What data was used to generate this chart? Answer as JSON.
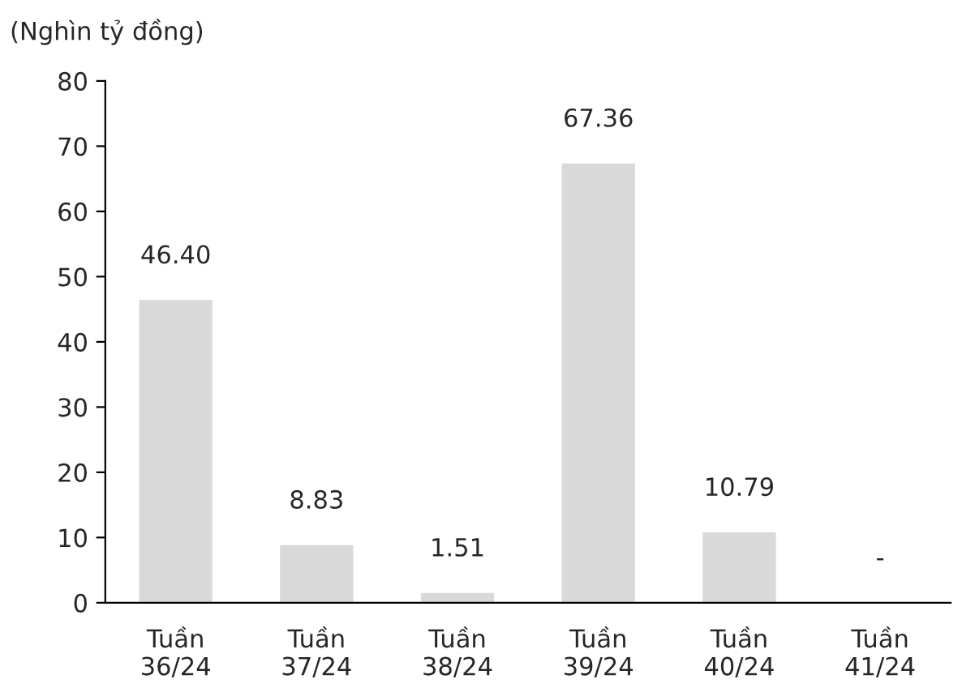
{
  "chart_data": {
    "type": "bar",
    "ylabel": "(Nghìn tỷ đồng)",
    "categories": [
      "Tuần\n36/24",
      "Tuần\n37/24",
      "Tuần\n38/24",
      "Tuần\n39/24",
      "Tuần\n40/24",
      "Tuần\n41/24"
    ],
    "values": [
      46.4,
      8.83,
      1.51,
      67.36,
      10.79,
      null
    ],
    "value_labels": [
      "46.40",
      "8.83",
      "1.51",
      "67.36",
      "10.79",
      "-"
    ],
    "color": "#d9d9d9",
    "ylim": [
      0,
      80
    ],
    "yticks": [
      0,
      10,
      20,
      30,
      40,
      50,
      60,
      70,
      80
    ],
    "grid": false,
    "legend": false
  }
}
